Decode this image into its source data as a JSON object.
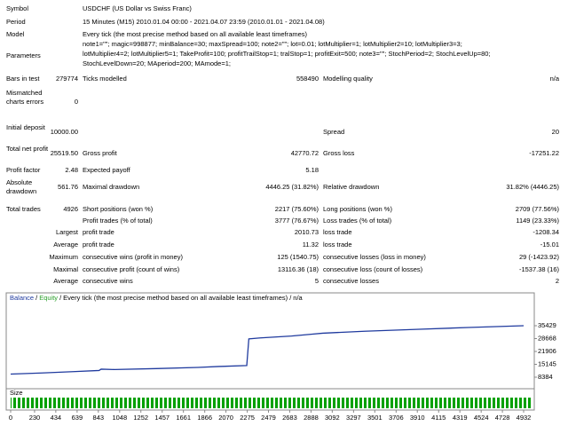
{
  "report": {
    "rows": [
      [
        "Symbol",
        "USDCHF (US Dollar vs Swiss Franc)"
      ],
      [
        "Period",
        "15 Minutes (M15) 2010.01.04 00:00 - 2021.04.07 23:59 (2010.01.01 - 2021.04.08)"
      ],
      [
        "Model",
        "Every tick (the most precise method based on all available least timeframes)"
      ],
      [
        "Parameters",
        "note1=\"\"; magic=998877; minBalance=30; maxSpread=100; note2=\"\"; lot=0.01; lotMultiplier=1; lotMultiplier2=10; lotMultiplier3=3;",
        "lotMultiplier4=2; lotMultiplier5=1; TakeProfit=100; profitTrailStop=1; tralStop=1; profitExit=500; note3=\"\"; StochPeriod=2; StochLevelUp=80;",
        "StochLevelDown=20; MAperiod=200; MAmode=1;"
      ],
      [
        "Bars in test",
        "279774",
        "Ticks modelled",
        "558490",
        "Modelling quality",
        "n/a"
      ],
      [
        "Mismatched charts errors",
        "0"
      ],
      [
        "Initial deposit",
        "10000.00",
        "Spread",
        "20"
      ],
      [
        "Total net profit",
        "25519.50",
        "Gross profit",
        "42770.72",
        "Gross loss",
        "-17251.22"
      ],
      [
        "Profit factor",
        "2.48",
        "Expected payoff",
        "5.18"
      ],
      [
        "Absolute drawdown",
        "561.76",
        "Maximal drawdown",
        "4446.25 (31.82%)",
        "Relative drawdown",
        "31.82% (4446.25)"
      ],
      [
        "Total trades",
        "4926",
        "Short positions (won %)",
        "2217 (75.60%)",
        "Long positions (won %)",
        "2709 (77.56%)"
      ],
      [
        "Profit trades (% of total)",
        "3777 (76.67%)",
        "Loss trades (% of total)",
        "1149 (23.33%)"
      ],
      [
        "Largest",
        "profit trade",
        "2010.73",
        "loss trade",
        "-1208.34"
      ],
      [
        "Average",
        "profit trade",
        "11.32",
        "loss trade",
        "-15.01"
      ],
      [
        "Maximum",
        "consecutive wins (profit in money)",
        "125 (1540.75)",
        "consecutive losses (loss in money)",
        "29 (-1423.92)"
      ],
      [
        "Maximal",
        "consecutive profit (count of wins)",
        "13116.36 (18)",
        "consecutive loss (count of losses)",
        "-1537.38 (16)"
      ],
      [
        "Average",
        "consecutive wins",
        "5",
        "consecutive losses",
        "2"
      ]
    ]
  },
  "graph": {
    "legend_balance": "Balance",
    "separator": "/",
    "legend_equity": "Equity",
    "model": "Every tick (the most precise method based on all available least timeframes)",
    "quality": "n/a",
    "size_label": "Size",
    "balance_color": "#1f3a9e",
    "equity_color": "#2ca02c",
    "xlim": [
      0,
      4932
    ],
    "xticks": [
      0,
      230,
      434,
      639,
      843,
      1048,
      1252,
      1457,
      1661,
      1866,
      2070,
      2275,
      2479,
      2683,
      2888,
      3092,
      3297,
      3501,
      3706,
      3910,
      4115,
      4319,
      4524,
      4728,
      4932
    ],
    "ylim": [
      8384,
      35429
    ],
    "yticks": [
      8384,
      15145,
      21906,
      28668,
      35429
    ],
    "x": [
      0,
      300,
      600,
      850,
      870,
      1000,
      1400,
      1800,
      2000,
      2270,
      2290,
      2400,
      2700,
      2900,
      3000,
      3400,
      3900,
      4400,
      4932
    ],
    "values": [
      10000,
      10600,
      11300,
      11900,
      12600,
      12400,
      12900,
      13500,
      14000,
      14500,
      28500,
      29000,
      30000,
      31000,
      31500,
      32500,
      33500,
      34500,
      35429
    ]
  }
}
